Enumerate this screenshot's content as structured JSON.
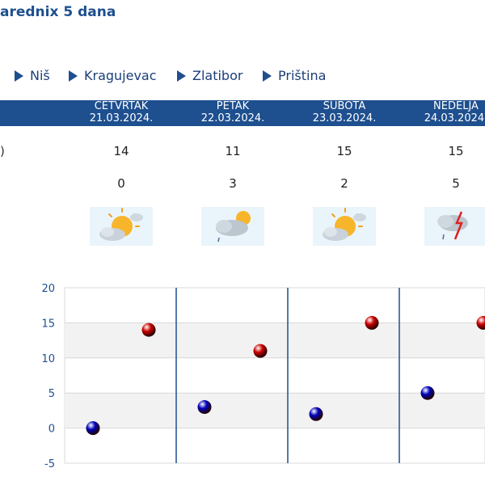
{
  "header": {
    "title": "aredniх 5 dana"
  },
  "cities": [
    {
      "label": "Niš"
    },
    {
      "label": "Kragujevac"
    },
    {
      "label": "Zlatibor"
    },
    {
      "label": "Priština"
    }
  ],
  "row_label": ")",
  "days": [
    {
      "name": "ČETVRTAK",
      "date": "21.03.2024.",
      "max": "14",
      "min": "0",
      "icon": "sun-cloud-icon"
    },
    {
      "name": "PETAK",
      "date": "22.03.2024.",
      "max": "11",
      "min": "3",
      "icon": "cloud-sun-rain-icon"
    },
    {
      "name": "SUBOTA",
      "date": "23.03.2024.",
      "max": "15",
      "min": "2",
      "icon": "sun-cloud-icon"
    },
    {
      "name": "NEDELJA",
      "date": "24.03.2024.",
      "max": "15",
      "min": "5",
      "icon": "thunderstorm-icon"
    }
  ],
  "colors": {
    "accent": "#1e4f8f",
    "max_marker": "#cc0000",
    "min_marker": "#0000bb"
  },
  "chart_data": {
    "type": "scatter",
    "categories": [
      "21.03.2024.",
      "22.03.2024.",
      "23.03.2024.",
      "24.03.2024."
    ],
    "series": [
      {
        "values": [
          14,
          11,
          15,
          15
        ],
        "color": "#cc0000"
      },
      {
        "values": [
          0,
          3,
          2,
          5
        ],
        "color": "#0000bb"
      }
    ],
    "ylim": [
      -5,
      20
    ],
    "yticks": [
      "20",
      "15",
      "10",
      "5",
      "0",
      "-5"
    ],
    "grid": true,
    "band_shading": "alternate"
  }
}
